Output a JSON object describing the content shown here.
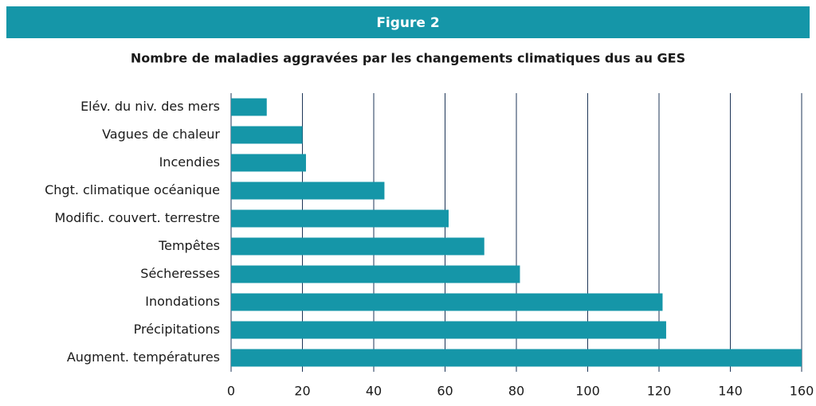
{
  "chart_data": {
    "type": "barh",
    "figure_label": "Figure 2",
    "title": "Nombre de maladies aggravées par les changements climatiques dus au GES",
    "categories": [
      "Elév. du niv. des mers",
      "Vagues de chaleur",
      "Incendies",
      "Chgt. climatique océanique",
      "Modific. couvert. terrestre",
      "Tempêtes",
      "Sécheresses",
      "Inondations",
      "Précipitations",
      "Augment. températures"
    ],
    "values": [
      10,
      20,
      21,
      43,
      61,
      71,
      81,
      121,
      122,
      160
    ],
    "color": "#1596a8",
    "xlim": [
      0,
      160
    ],
    "xticks": [
      0,
      20,
      40,
      60,
      80,
      100,
      120,
      140,
      160
    ],
    "grid": true
  }
}
